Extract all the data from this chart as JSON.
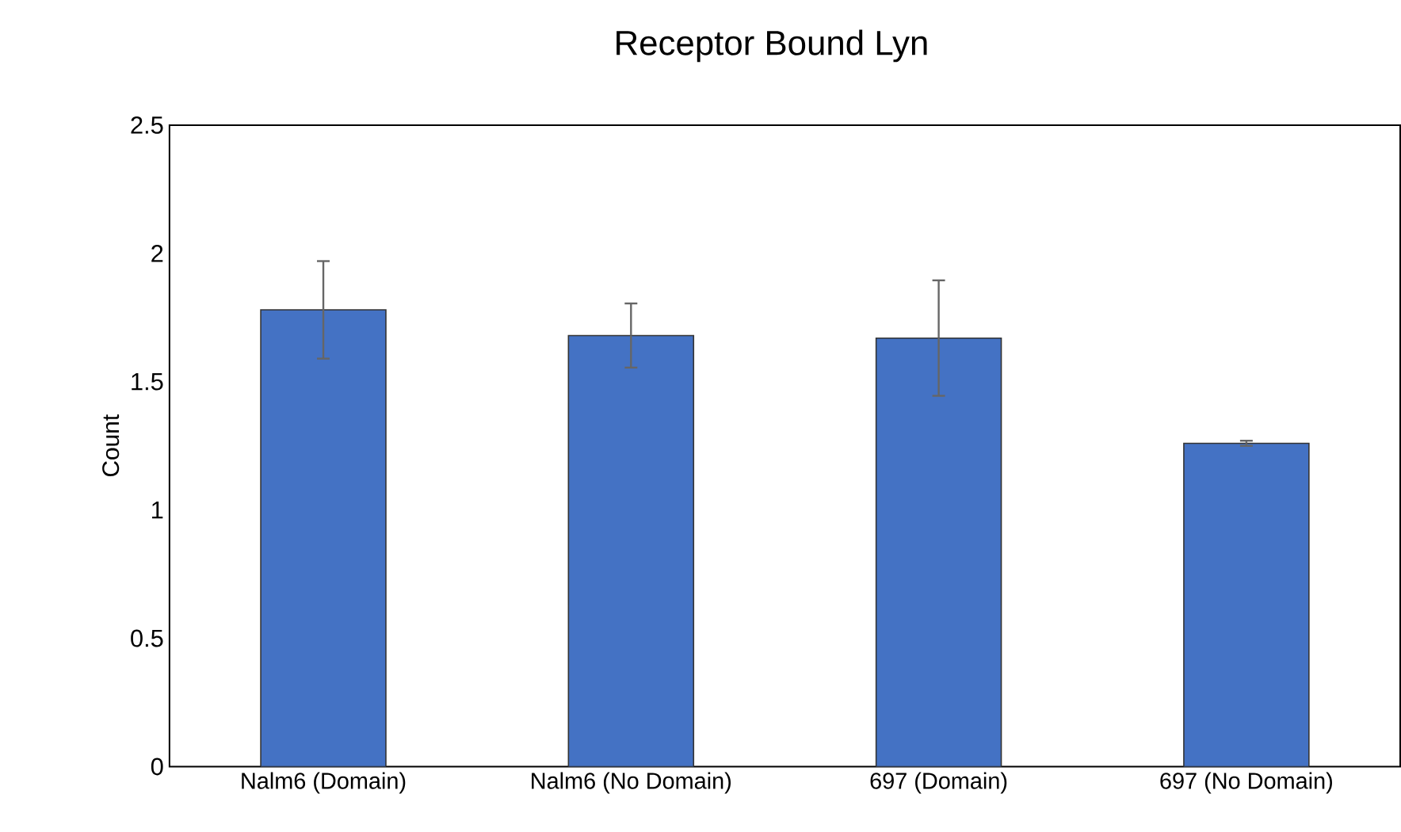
{
  "chart_data": {
    "type": "bar",
    "title": "Receptor Bound Lyn",
    "ylabel": "Count",
    "categories": [
      "Nalm6 (Domain)",
      "Nalm6 (No Domain)",
      "697 (Domain)",
      "697 (No Domain)"
    ],
    "values": [
      1.78,
      1.68,
      1.67,
      1.26
    ],
    "errors": [
      0.19,
      0.125,
      0.225,
      0.01
    ],
    "color": "#4472c4",
    "ylim": [
      0,
      2.5
    ],
    "yticks": [
      0,
      0.5,
      1,
      1.5,
      2,
      2.5
    ],
    "grid": false
  }
}
